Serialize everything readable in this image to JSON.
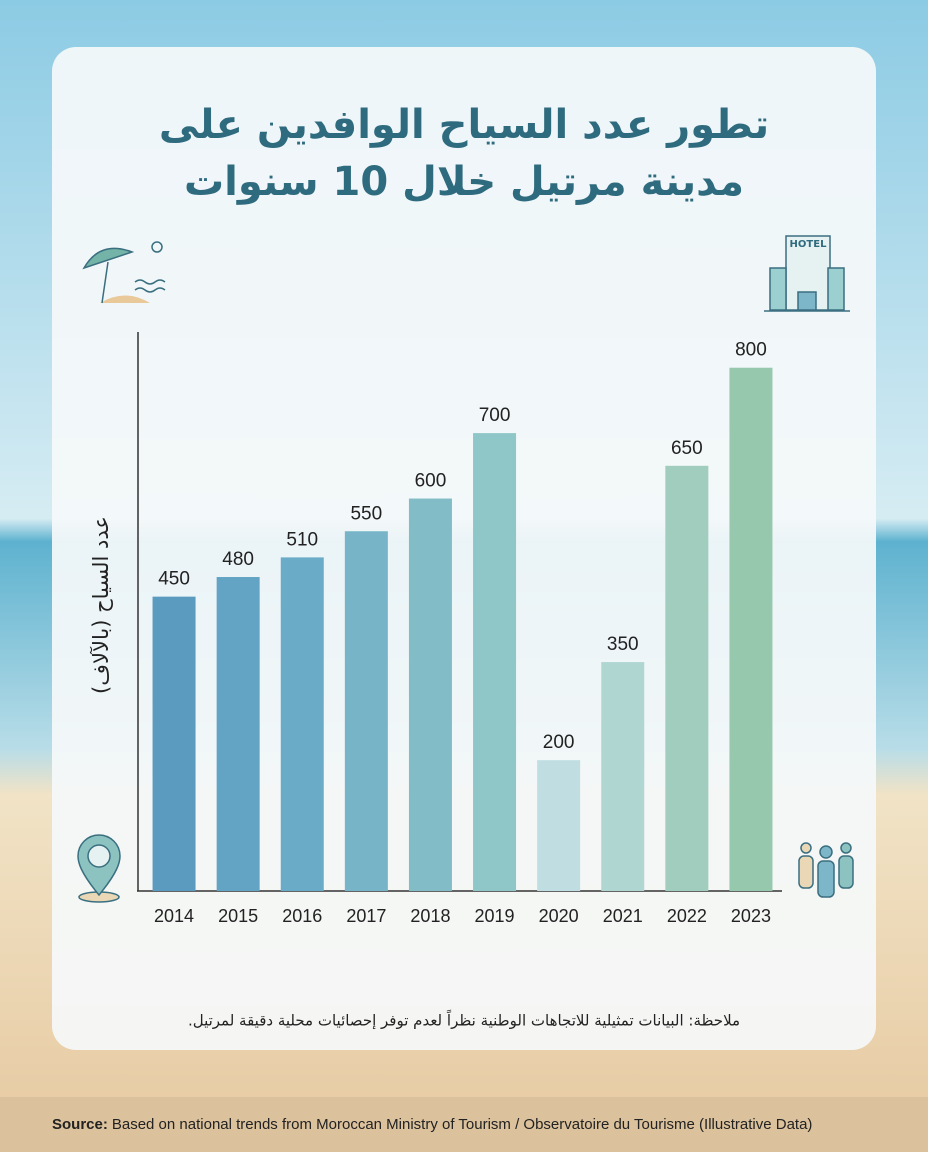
{
  "chart_data": {
    "type": "bar",
    "title": [
      "تطور عدد السياح الوافدين على",
      "مدينة مرتيل خلال 10 سنوات"
    ],
    "y_label": "عدد السياح (بالآلاف)",
    "categories": [
      "2014",
      "2015",
      "2016",
      "2017",
      "2018",
      "2019",
      "2020",
      "2021",
      "2022",
      "2023"
    ],
    "values": [
      450,
      480,
      510,
      550,
      600,
      700,
      200,
      350,
      650,
      800
    ],
    "colors": [
      "#5b9bbf",
      "#63a4c4",
      "#6aabc7",
      "#77b4c7",
      "#82bdc7",
      "#8fc6c7",
      "#c0dde1",
      "#b0d6d1",
      "#a0cdbd",
      "#96c8ad"
    ],
    "ylim": [
      0,
      850
    ],
    "note": "ملاحظة: البيانات تمثيلية للاتجاهات الوطنية نظراً لعدم توفر إحصائيات محلية دقيقة لمرتيل.",
    "hotel_sign": "HOTEL",
    "source_label": "Source:",
    "source": "Based on national trends from Moroccan Ministry of Tourism / Observatoire du Tourisme (Illustrative Data)"
  }
}
